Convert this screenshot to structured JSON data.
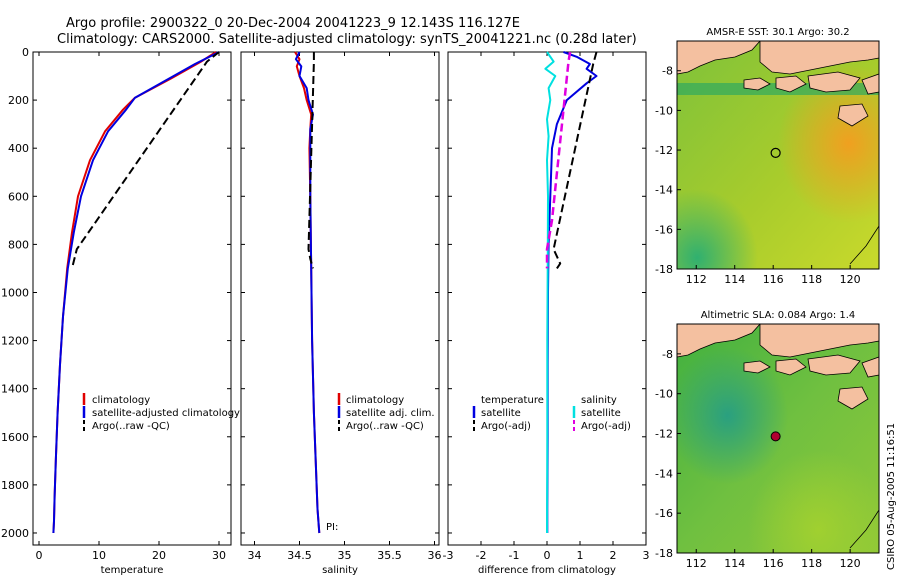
{
  "title": {
    "line1": "Argo profile:  2900322_0 20-Dec-2004 20041223_9 12.143S 116.127E",
    "line2": "Climatology: CARS2000. Satellite-adjusted climatology: synTS_20041221.nc (0.28d later)"
  },
  "colors": {
    "climatology": "#e00000",
    "satellite": "#0000e0",
    "argo": "#000000",
    "sal_satellite": "#00e0e0",
    "sal_argo": "#e000e0",
    "land": "#f4c0a0"
  },
  "chart_data": [
    {
      "type": "line",
      "panel": "temperature",
      "xlabel": "temperature",
      "ylabel": "",
      "xlim": [
        -1,
        32
      ],
      "ylim": [
        2050,
        0
      ],
      "xticks": [
        0,
        10,
        20,
        30
      ],
      "yticks": [
        0,
        200,
        400,
        600,
        800,
        1000,
        1200,
        1400,
        1600,
        1800,
        2000
      ],
      "legend": [
        "climatology",
        "satellite-adjusted climatology",
        "Argo(..raw -QC)"
      ],
      "series": [
        {
          "name": "climatology",
          "x": [
            29.5,
            27,
            22,
            16,
            14,
            11,
            8.5,
            6.5,
            5.5,
            4.7,
            4,
            3.5,
            3.1,
            2.8,
            2.6,
            2.5,
            2.4
          ],
          "y": [
            0,
            40,
            110,
            190,
            240,
            330,
            450,
            600,
            750,
            900,
            1100,
            1300,
            1500,
            1700,
            1850,
            1950,
            2000
          ]
        },
        {
          "name": "satellite-adjusted climatology",
          "x": [
            30,
            26,
            21,
            16,
            14.5,
            11.5,
            9,
            7,
            5.8,
            4.8,
            4,
            3.5,
            3.1,
            2.8,
            2.6,
            2.5,
            2.4
          ],
          "y": [
            0,
            50,
            120,
            190,
            240,
            330,
            450,
            600,
            750,
            900,
            1100,
            1300,
            1500,
            1700,
            1850,
            1950,
            2000
          ]
        },
        {
          "name": "Argo(..raw -QC)",
          "x": [
            30,
            28,
            6.3,
            5.5
          ],
          "y": [
            0,
            40,
            820,
            900
          ]
        }
      ]
    },
    {
      "type": "line",
      "panel": "salinity",
      "xlabel": "salinity",
      "ylabel": "",
      "xlim": [
        33.85,
        36.05
      ],
      "ylim": [
        2050,
        0
      ],
      "xticks": [
        34,
        34.5,
        35,
        35.5,
        36
      ],
      "legend": [
        "climatology",
        "satellite adj. clim.",
        "Argo(..raw -QC)"
      ],
      "annotations": [
        "PI:"
      ],
      "series": [
        {
          "name": "climatology",
          "x": [
            34.45,
            34.5,
            34.47,
            34.5,
            34.55,
            34.58,
            34.63,
            34.62,
            34.61,
            34.62,
            34.63,
            34.64,
            34.66,
            34.68,
            34.7,
            34.72
          ],
          "y": [
            0,
            30,
            60,
            100,
            150,
            200,
            260,
            320,
            400,
            600,
            900,
            1200,
            1500,
            1700,
            1900,
            2000
          ]
        },
        {
          "name": "satellite adj. clim.",
          "x": [
            34.5,
            34.46,
            34.52,
            34.5,
            34.58,
            34.6,
            34.65,
            34.62,
            34.62,
            34.62,
            34.63,
            34.64,
            34.66,
            34.68,
            34.7,
            34.72
          ],
          "y": [
            0,
            30,
            60,
            100,
            150,
            200,
            260,
            320,
            400,
            600,
            900,
            1200,
            1500,
            1700,
            1900,
            2000
          ]
        },
        {
          "name": "Argo(..raw -QC)",
          "x": [
            34.66,
            34.66,
            34.6,
            34.62,
            34.65
          ],
          "y": [
            0,
            40,
            820,
            860,
            900
          ]
        }
      ]
    },
    {
      "type": "line",
      "panel": "difference",
      "xlabel": "difference from climatology",
      "ylabel": "",
      "xlim": [
        -3,
        3
      ],
      "ylim": [
        2050,
        0
      ],
      "xticks": [
        -3,
        -2,
        -1,
        0,
        1,
        2,
        3
      ],
      "legend": {
        "left_title": "temperature",
        "left": [
          "satellite",
          "Argo(-adj)"
        ],
        "right_title": "salinity",
        "right": [
          "satellite",
          "Argo(-adj)"
        ]
      },
      "series": [
        {
          "name": "temperature satellite",
          "x": [
            0.5,
            0.9,
            1.3,
            1.2,
            1.5,
            1.2,
            0.6,
            0.3,
            0.15,
            0.1,
            0.05,
            0.03,
            0.02,
            0.02,
            0.01,
            0.01
          ],
          "y": [
            0,
            20,
            50,
            70,
            100,
            130,
            200,
            300,
            400,
            600,
            800,
            1000,
            1300,
            1600,
            1900,
            2000
          ]
        },
        {
          "name": "temperature Argo(-adj)",
          "x": [
            1.5,
            1.4,
            0.2,
            0.4,
            0.3
          ],
          "y": [
            0,
            50,
            820,
            880,
            900
          ]
        },
        {
          "name": "salinity satellite",
          "x": [
            0.0,
            0.2,
            -0.05,
            0.25,
            0.05,
            0.1,
            0.0,
            0.05,
            0.0,
            0.03,
            0.02,
            0.01,
            0.01,
            0.0
          ],
          "y": [
            0,
            40,
            70,
            100,
            150,
            200,
            280,
            350,
            450,
            600,
            900,
            1200,
            1600,
            2000
          ]
        },
        {
          "name": "salinity Argo(-adj)",
          "x": [
            0.7,
            0.65,
            0.15,
            0.0,
            0.0
          ],
          "y": [
            0,
            40,
            700,
            820,
            900
          ]
        }
      ]
    },
    {
      "type": "heatmap",
      "panel": "sst-map",
      "title": "AMSR-E SST: 30.1 Argo: 30.2",
      "xlim": [
        111,
        121.5
      ],
      "ylim": [
        -18,
        -6.5
      ],
      "xticks": [
        112,
        114,
        116,
        118,
        120
      ],
      "yticks": [
        -8,
        -10,
        -12,
        -14,
        -16,
        -18
      ],
      "marker": {
        "lon": 116.127,
        "lat": -12.143,
        "style": "open-circle"
      }
    },
    {
      "type": "heatmap",
      "panel": "sla-map",
      "title": "Altimetric SLA: 0.084 Argo: 1.4",
      "xlim": [
        111,
        121.5
      ],
      "ylim": [
        -18,
        -6.5
      ],
      "xticks": [
        112,
        114,
        116,
        118,
        120
      ],
      "yticks": [
        -8,
        -10,
        -12,
        -14,
        -16,
        -18
      ],
      "marker": {
        "lon": 116.127,
        "lat": -12.143,
        "style": "filled-dot"
      }
    }
  ],
  "side_label": "CSIRO 05-Aug-2005 11:16:51"
}
